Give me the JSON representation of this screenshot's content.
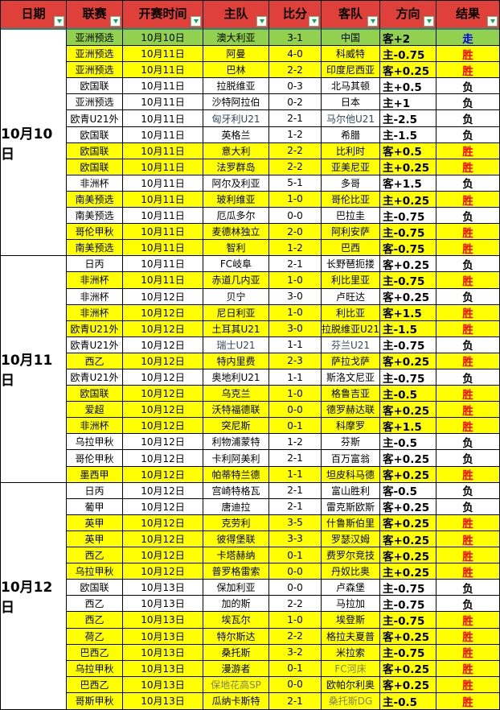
{
  "table": {
    "columns": [
      "日期",
      "联赛",
      "开赛时间",
      "主队",
      "比分",
      "客队",
      "方向",
      "结果"
    ],
    "result_styles": {
      "胜": "win",
      "负": "loss",
      "走": "draw"
    },
    "sections": [
      {
        "date": "10月10日",
        "rows": [
          [
            "亚洲预选",
            "10月10日",
            "澳大利亚",
            "3-1",
            "中国",
            "客+2",
            "走",
            "g"
          ],
          [
            "亚洲预选",
            "10月11日",
            "阿曼",
            "4-0",
            "科威特",
            "主-0.75",
            "胜",
            "y"
          ],
          [
            "亚洲预选",
            "10月11日",
            "巴林",
            "2-2",
            "印度尼西亚",
            "客+0.25",
            "胜",
            "y"
          ],
          [
            "欧国联",
            "10月11日",
            "拉脱维亚",
            "0-3",
            "北马其顿",
            "主+0.5",
            "负",
            "w"
          ],
          [
            "亚洲预选",
            "10月11日",
            "沙特阿拉伯",
            "0-2",
            "日本",
            "主+1",
            "负",
            "w"
          ],
          [
            "欧青U21外",
            "10月11日",
            "匈牙利U21",
            "2-1",
            "马尔他U21",
            "主-2.5",
            "负",
            "w",
            {
              "home": "navy",
              "away": "navy"
            }
          ],
          [
            "欧国联",
            "10月11日",
            "英格兰",
            "1-2",
            "希腊",
            "主-1.5",
            "负",
            "w"
          ],
          [
            "欧国联",
            "10月11日",
            "意大利",
            "2-2",
            "比利时",
            "客+0.5",
            "胜",
            "y"
          ],
          [
            "欧国联",
            "10月11日",
            "法罗群岛",
            "2-2",
            "亚美尼亚",
            "主+0.25",
            "胜",
            "y"
          ],
          [
            "非洲杯",
            "10月11日",
            "阿尔及利亚",
            "5-1",
            "多哥",
            "客+1.5",
            "负",
            "w"
          ],
          [
            "南美预选",
            "10月11日",
            "玻利维亚",
            "1-0",
            "哥伦比亚",
            "主+0.25",
            "胜",
            "y"
          ],
          [
            "南美预选",
            "10月11日",
            "厄瓜多尔",
            "0-0",
            "巴拉圭",
            "主-0.75",
            "负",
            "w"
          ],
          [
            "哥伦甲秋",
            "10月11日",
            "麦德林独立",
            "2-0",
            "阿利安萨",
            "主-0.75",
            "胜",
            "y"
          ],
          [
            "南美预选",
            "10月11日",
            "智利",
            "1-2",
            "巴西",
            "客-0.75",
            "胜",
            "y"
          ]
        ]
      },
      {
        "date": "10月11日",
        "rows": [
          [
            "日丙",
            "10月11日",
            "FC岐阜",
            "2-1",
            "长野琶扼搂",
            "客+0.25",
            "负",
            "w"
          ],
          [
            "非洲杯",
            "10月11日",
            "赤道几内亚",
            "1-0",
            "利比里亚",
            "主-0.75",
            "胜",
            "y"
          ],
          [
            "非洲杯",
            "10月12日",
            "贝宁",
            "3-0",
            "卢旺达",
            "客+0.25",
            "负",
            "w"
          ],
          [
            "非洲杯",
            "10月12日",
            "尼日利亚",
            "1-0",
            "利比亚",
            "客+1.5",
            "胜",
            "y"
          ],
          [
            "欧青U21外",
            "10月12日",
            "土耳其U21",
            "3-0",
            "拉脱维亚U21",
            "主-1.5",
            "胜",
            "y"
          ],
          [
            "欧青U21外",
            "10月12日",
            "瑞士U21",
            "1-1",
            "芬兰U21",
            "主-0.75",
            "负",
            "w",
            {
              "home": "navy",
              "away": "navy"
            }
          ],
          [
            "西乙",
            "10月12日",
            "特内里费",
            "2-3",
            "萨拉戈萨",
            "客+0.25",
            "胜",
            "y"
          ],
          [
            "欧青U21外",
            "10月12日",
            "奥地利U21",
            "1-1",
            "斯洛文尼亚",
            "主-0.75",
            "负",
            "w"
          ],
          [
            "欧国联",
            "10月12日",
            "乌克兰",
            "1-0",
            "格鲁吉亚",
            "主-0.5",
            "胜",
            "y"
          ],
          [
            "爱超",
            "10月12日",
            "沃特福德联",
            "0-0",
            "德罗赫达联",
            "客+0.25",
            "胜",
            "y"
          ],
          [
            "非洲杯",
            "10月12日",
            "突尼斯",
            "0-1",
            "科摩罗",
            "客+1.5",
            "胜",
            "y"
          ],
          [
            "乌拉甲秋",
            "10月12日",
            "利物浦蒙特",
            "1-2",
            "芬斯",
            "主-0.5",
            "负",
            "w"
          ],
          [
            "哥伦甲秋",
            "10月12日",
            "卡利阿美利",
            "2-1",
            "百万富翁",
            "客+0.25",
            "负",
            "w"
          ],
          [
            "墨西甲",
            "10月12日",
            "帕蒂特兰德",
            "1-1",
            "坦皮科马德",
            "客+0.25",
            "胜",
            "y"
          ]
        ]
      },
      {
        "date": "10月12日",
        "rows": [
          [
            "日丙",
            "10月12日",
            "宫崎特格瓦",
            "2-1",
            "富山胜利",
            "客-0.5",
            "负",
            "w"
          ],
          [
            "葡甲",
            "10月12日",
            "唐迪拉",
            "2-1",
            "雷克斯欧斯",
            "客+0.25",
            "负",
            "w"
          ],
          [
            "英甲",
            "10月12日",
            "克劳利",
            "3-5",
            "什鲁斯伯里",
            "客+0.25",
            "胜",
            "y"
          ],
          [
            "英甲",
            "10月12日",
            "彼得堡联",
            "3-3",
            "罗瑟汉姆",
            "客+0.25",
            "胜",
            "y"
          ],
          [
            "西乙",
            "10月12日",
            "卡塔赫纳",
            "0-1",
            "费罗尔竞技",
            "客+0.25",
            "胜",
            "y"
          ],
          [
            "乌拉甲秋",
            "10月12日",
            "普罗格雷索",
            "0-0",
            "丹奴比奥",
            "主+0.25",
            "胜",
            "y"
          ],
          [
            "欧国联",
            "10月13日",
            "保加利亚",
            "0-0",
            "卢森堡",
            "主-0.75",
            "负",
            "w"
          ],
          [
            "西乙",
            "10月13日",
            "加的斯",
            "2-2",
            "马拉加",
            "主-0.75",
            "负",
            "w"
          ],
          [
            "西乙",
            "10月13日",
            "埃瓦尔",
            "1-0",
            "埃登斯",
            "主-0.75",
            "胜",
            "y"
          ],
          [
            "荷乙",
            "10月13日",
            "特尔斯达",
            "2-2",
            "格拉夫夏普",
            "客+0.25",
            "胜",
            "y"
          ],
          [
            "巴西乙",
            "10月13日",
            "桑托斯",
            "3-2",
            "米拉索",
            "主-0.75",
            "胜",
            "y"
          ],
          [
            "乌拉甲秋",
            "10月13日",
            "漫游者",
            "0-1",
            "FC河床",
            "客+0.25",
            "胜",
            "y",
            {
              "away": "muted"
            }
          ],
          [
            "巴西乙",
            "10月13日",
            "保地花高SP",
            "0-0",
            "欧帕尔利奥",
            "客+0.25",
            "胜",
            "y",
            {
              "home": "muted"
            }
          ],
          [
            "哥斯甲秋",
            "10月13日",
            "瓜纳卡斯特",
            "2-1",
            "桑托斯DG",
            "主-0.5",
            "胜",
            "y",
            {
              "away": "muted"
            }
          ]
        ]
      }
    ]
  },
  "colors": {
    "header_bg": "#E0403A",
    "row_win": "#FFFF00",
    "row_push": "#92D050",
    "row_loss": "#FFFFFF",
    "result_win": "#FF0000",
    "result_loss": "#000000",
    "result_push": "#0000EE",
    "filter_arrow": "#12A15E"
  }
}
